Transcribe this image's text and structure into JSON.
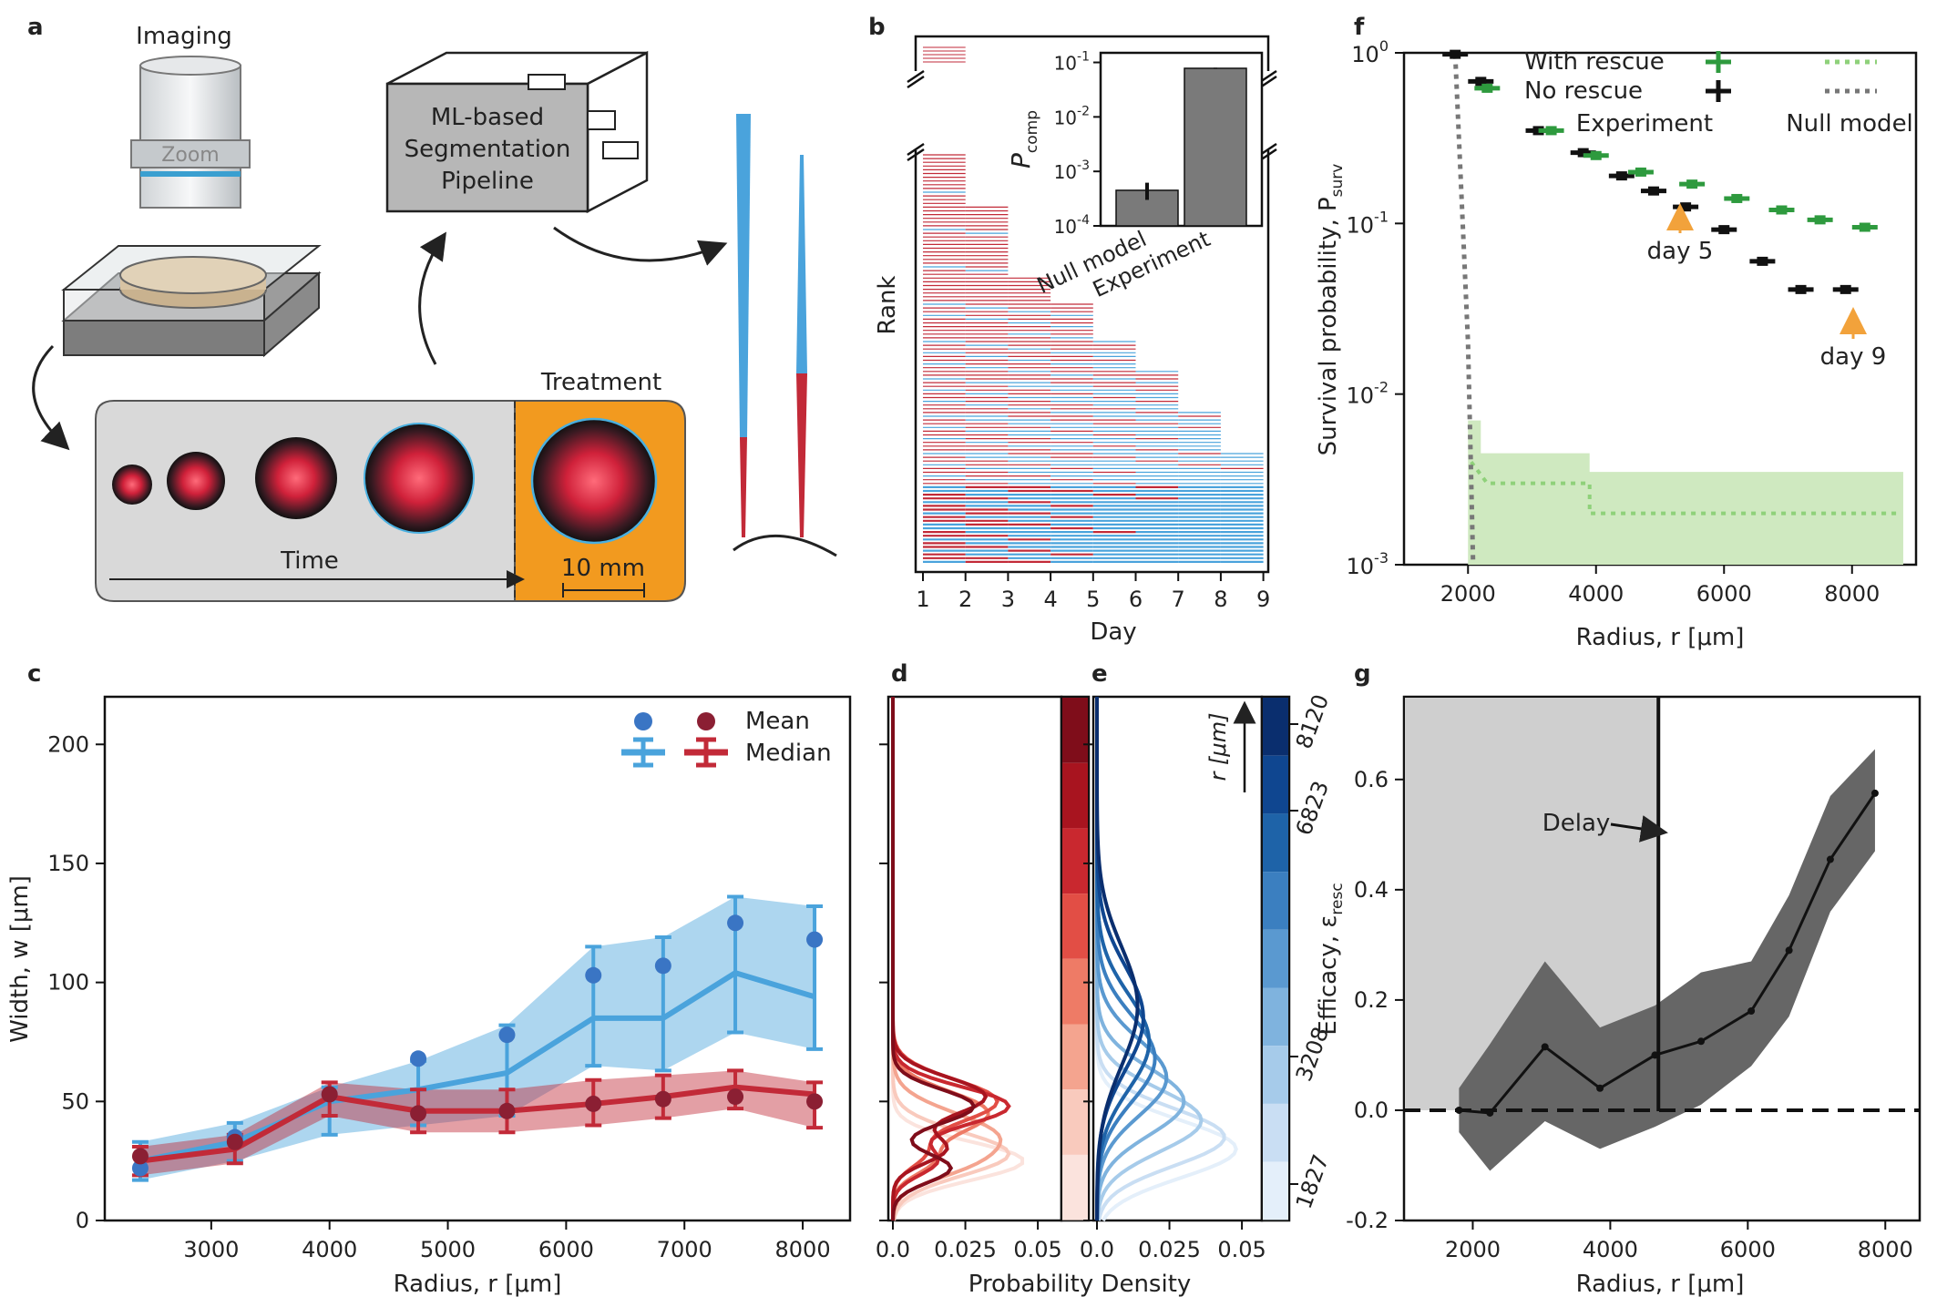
{
  "panel_a": {
    "label": "a",
    "imaging": "Imaging",
    "zoom": "Zoom",
    "pipeline": [
      "ML-based",
      "Segmentation",
      "Pipeline"
    ],
    "treatment": "Treatment",
    "time": "Time",
    "scale": "10 mm"
  },
  "panel_b": {
    "label": "b",
    "ylabel": "Rank",
    "xlabel": "Day",
    "inset_ylabel": "P",
    "inset_ylabel_sub": "comp",
    "inset_ticks": [
      "10",
      "10",
      "10",
      "10"
    ],
    "inset_tick_exps": [
      "-1",
      "-2",
      "-3",
      "-4"
    ],
    "inset_bars": [
      {
        "name": "Null model",
        "value": 0.00045,
        "err_lo": 0.0003,
        "err_hi": 0.00062
      },
      {
        "name": "Experiment",
        "value": 0.078,
        "err_lo": 0.076,
        "err_hi": 0.08
      }
    ],
    "colors": {
      "red": "#c22a38",
      "blue": "#4aa3dc"
    }
  },
  "panel_f": {
    "label": "f",
    "legend": {
      "with": "With rescue",
      "without": "No rescue",
      "experiment": "Experiment",
      "null": "Null model"
    },
    "ylabel": "Survival probability, P",
    "ylabel_sub": "surv",
    "xlabel": "Radius, r [μm]",
    "ann1": "day 5",
    "ann2": "day 9",
    "yticks": [
      "10",
      "10",
      "10",
      "10"
    ],
    "ytick_exps": [
      "0",
      "-1",
      "-2",
      "-3"
    ],
    "xticks": [
      "2000",
      "4000",
      "6000",
      "8000"
    ],
    "colors": {
      "green": "#2e9a3e",
      "black": "#111111",
      "null_green": "#8fd17a",
      "band": "#cfe9c0",
      "orange": "#f2a23b"
    }
  },
  "panel_c": {
    "label": "c",
    "ylabel": "Width, w [μm]",
    "xlabel": "Radius, r [μm]",
    "legend": {
      "mean": "Mean",
      "median": "Median"
    },
    "xticks": [
      "3000",
      "4000",
      "5000",
      "6000",
      "7000",
      "8000"
    ],
    "yticks": [
      "0",
      "50",
      "100",
      "150",
      "200"
    ]
  },
  "panel_d": {
    "label": "d",
    "xticks": [
      "0.0",
      "0.025",
      "0.05"
    ]
  },
  "panel_e": {
    "label": "e",
    "xticks": [
      "0.0",
      "0.025",
      "0.05"
    ],
    "cbar_label": "r [μm]",
    "cbar_ticks": [
      "8120",
      "6823",
      "3208",
      "1827"
    ]
  },
  "panel_de_xlabel": "Probability Density",
  "panel_g": {
    "label": "g",
    "ylabel": "Efficacy, ε",
    "ylabel_sub": "resc",
    "xlabel": "Radius, r [μm]",
    "delay": "Delay",
    "xticks": [
      "2000",
      "4000",
      "6000",
      "8000"
    ],
    "yticks": [
      "0.6",
      "0.4",
      "0.2",
      "0.0",
      "-0.2"
    ]
  },
  "chart_data": [
    {
      "type": "scatter",
      "panel": "f",
      "x_unit": "μm",
      "ylim": [
        0.001,
        1
      ],
      "xlim": [
        1000,
        9000
      ],
      "series": [
        {
          "name": "No rescue",
          "x": [
            1800,
            2200,
            3100,
            3800,
            4400,
            4900,
            5400,
            6000,
            6600,
            7200,
            7900
          ],
          "y": [
            0.98,
            0.68,
            0.35,
            0.26,
            0.19,
            0.155,
            0.125,
            0.092,
            0.06,
            0.041,
            0.041
          ]
        },
        {
          "name": "With rescue",
          "x": [
            2300,
            3300,
            4000,
            4700,
            5500,
            6200,
            6900,
            7500,
            8200
          ],
          "y": [
            0.62,
            0.35,
            0.25,
            0.2,
            0.17,
            0.14,
            0.12,
            0.105,
            0.095
          ]
        }
      ]
    },
    {
      "type": "line",
      "panel": "c",
      "x": [
        2400,
        3200,
        4000,
        4750,
        5500,
        6230,
        6820,
        7430,
        8100
      ],
      "xlim": [
        2100,
        8400
      ],
      "ylim": [
        0,
        220
      ],
      "series": [
        {
          "name": "Mean blue",
          "values": [
            22,
            35,
            53,
            68,
            78,
            103,
            107,
            125,
            118
          ]
        },
        {
          "name": "Median blue",
          "values": [
            25,
            33,
            50,
            55,
            62,
            85,
            85,
            104,
            94
          ]
        },
        {
          "name": "Mean red",
          "values": [
            27,
            33,
            53,
            45,
            46,
            49,
            51,
            52,
            50
          ]
        },
        {
          "name": "Median red",
          "values": [
            25,
            30,
            52,
            46,
            46,
            49,
            52,
            56,
            53
          ]
        }
      ]
    },
    {
      "type": "line",
      "panel": "g",
      "x": [
        1800,
        2250,
        3050,
        3850,
        4650,
        5320,
        6050,
        6600,
        7200,
        7850
      ],
      "values": [
        0.0,
        -0.005,
        0.115,
        0.04,
        0.1,
        0.125,
        0.18,
        0.29,
        0.455,
        0.575
      ],
      "lower": [
        -0.04,
        -0.11,
        -0.02,
        -0.07,
        -0.03,
        0.01,
        0.08,
        0.17,
        0.36,
        0.47
      ],
      "upper": [
        0.04,
        0.12,
        0.27,
        0.15,
        0.19,
        0.25,
        0.27,
        0.39,
        0.57,
        0.655
      ],
      "xlim": [
        1000,
        8500
      ],
      "ylim": [
        -0.2,
        0.75
      ],
      "delay_x": 4700
    }
  ]
}
